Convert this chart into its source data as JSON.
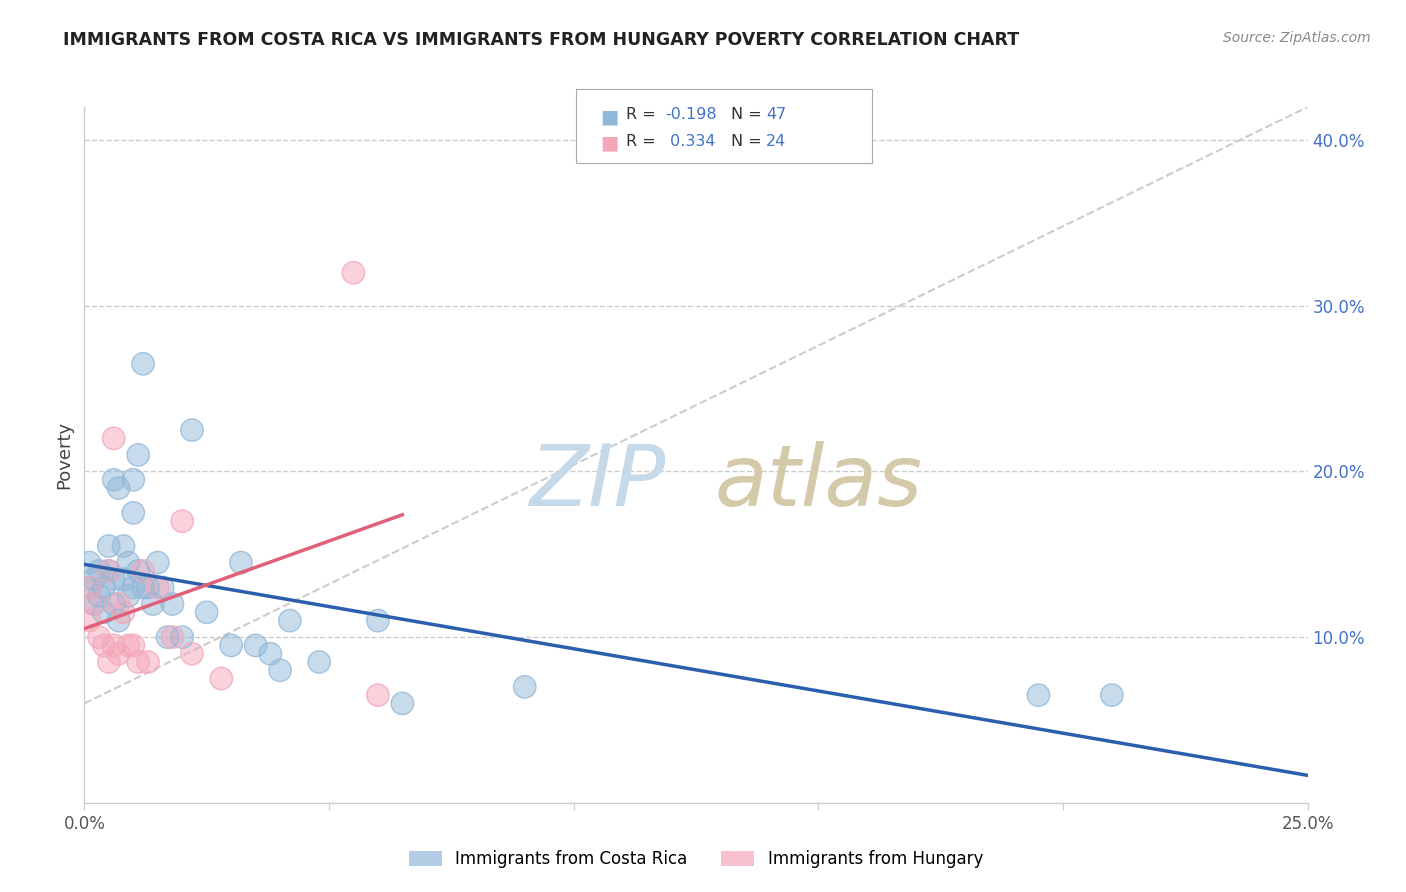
{
  "title": "IMMIGRANTS FROM COSTA RICA VS IMMIGRANTS FROM HUNGARY POVERTY CORRELATION CHART",
  "source": "Source: ZipAtlas.com",
  "ylabel": "Poverty",
  "xlim": [
    0.0,
    0.25
  ],
  "ylim": [
    0.0,
    0.42
  ],
  "xticks": [
    0.0,
    0.05,
    0.1,
    0.15,
    0.2,
    0.25
  ],
  "yticks_right": [
    0.1,
    0.2,
    0.3,
    0.4
  ],
  "ytick_labels_right": [
    "10.0%",
    "20.0%",
    "30.0%",
    "40.0%"
  ],
  "legend_labels": [
    "Immigrants from Costa Rica",
    "Immigrants from Hungary"
  ],
  "legend_r_cr": "-0.198",
  "legend_n_cr": "47",
  "legend_r_hu": "0.334",
  "legend_n_hu": "24",
  "scatter_color_cr": "#92b8d8",
  "scatter_color_hu": "#f4a7b9",
  "line_color_cr": "#2b5fad",
  "line_color_hu": "#e0607a",
  "dash_line_color": "#cccccc",
  "watermark_zip_color": "#c5d9e8",
  "watermark_atlas_color": "#d4c9a8",
  "title_color": "#222222",
  "background_color": "#ffffff",
  "cr_points_x": [
    0.001,
    0.001,
    0.002,
    0.002,
    0.003,
    0.003,
    0.004,
    0.004,
    0.005,
    0.005,
    0.006,
    0.006,
    0.006,
    0.007,
    0.007,
    0.008,
    0.008,
    0.009,
    0.009,
    0.01,
    0.01,
    0.01,
    0.011,
    0.011,
    0.012,
    0.012,
    0.013,
    0.014,
    0.015,
    0.016,
    0.017,
    0.018,
    0.02,
    0.022,
    0.025,
    0.03,
    0.032,
    0.035,
    0.038,
    0.04,
    0.042,
    0.048,
    0.06,
    0.065,
    0.09,
    0.195,
    0.21
  ],
  "cr_points_y": [
    0.13,
    0.145,
    0.12,
    0.135,
    0.125,
    0.14,
    0.115,
    0.13,
    0.14,
    0.155,
    0.12,
    0.135,
    0.195,
    0.11,
    0.19,
    0.135,
    0.155,
    0.125,
    0.145,
    0.13,
    0.175,
    0.195,
    0.14,
    0.21,
    0.13,
    0.265,
    0.13,
    0.12,
    0.145,
    0.13,
    0.1,
    0.12,
    0.1,
    0.225,
    0.115,
    0.095,
    0.145,
    0.095,
    0.09,
    0.08,
    0.11,
    0.085,
    0.11,
    0.06,
    0.07,
    0.065,
    0.065
  ],
  "hu_points_x": [
    0.001,
    0.001,
    0.002,
    0.003,
    0.004,
    0.005,
    0.005,
    0.006,
    0.006,
    0.007,
    0.007,
    0.008,
    0.009,
    0.01,
    0.011,
    0.012,
    0.013,
    0.015,
    0.018,
    0.02,
    0.022,
    0.028,
    0.055,
    0.06
  ],
  "hu_points_y": [
    0.13,
    0.11,
    0.12,
    0.1,
    0.095,
    0.14,
    0.085,
    0.095,
    0.22,
    0.12,
    0.09,
    0.115,
    0.095,
    0.095,
    0.085,
    0.14,
    0.085,
    0.13,
    0.1,
    0.17,
    0.09,
    0.075,
    0.32,
    0.065
  ]
}
